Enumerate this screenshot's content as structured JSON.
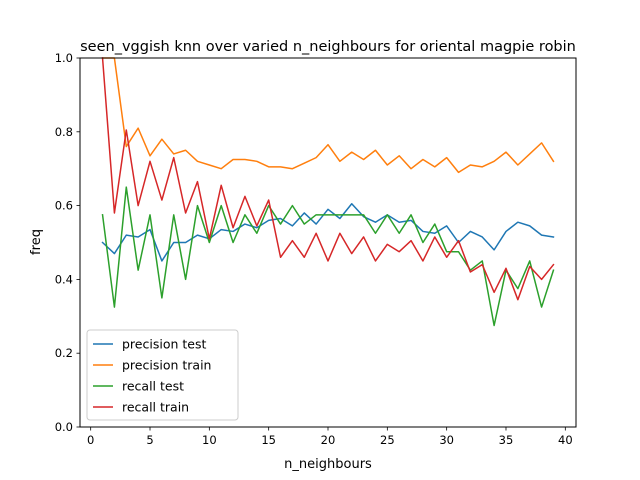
{
  "chart_data": {
    "type": "line",
    "title": "seen_vggish knn over varied n_neighbours for oriental magpie robin",
    "xlabel": "n_neighbours",
    "ylabel": "freq",
    "xlim": [
      -0.9,
      40.9
    ],
    "ylim": [
      0.0,
      1.0
    ],
    "xticks": [
      0,
      5,
      10,
      15,
      20,
      25,
      30,
      35,
      40
    ],
    "yticks": [
      0.0,
      0.2,
      0.4,
      0.6,
      0.8,
      1.0
    ],
    "xtick_labels": [
      "0",
      "5",
      "10",
      "15",
      "20",
      "25",
      "30",
      "35",
      "40"
    ],
    "ytick_labels": [
      "0.0",
      "0.2",
      "0.4",
      "0.6",
      "0.8",
      "1.0"
    ],
    "grid": false,
    "legend_position": "lower-left",
    "x": [
      1,
      2,
      3,
      4,
      5,
      6,
      7,
      8,
      9,
      10,
      11,
      12,
      13,
      14,
      15,
      16,
      17,
      18,
      19,
      20,
      21,
      22,
      23,
      24,
      25,
      26,
      27,
      28,
      29,
      30,
      31,
      32,
      33,
      34,
      35,
      36,
      37,
      38,
      39
    ],
    "series": [
      {
        "name": "precision test",
        "color": "#1f77b4",
        "values": [
          0.5,
          0.47,
          0.52,
          0.515,
          0.535,
          0.45,
          0.5,
          0.5,
          0.52,
          0.51,
          0.535,
          0.53,
          0.55,
          0.54,
          0.56,
          0.565,
          0.545,
          0.58,
          0.55,
          0.59,
          0.565,
          0.605,
          0.57,
          0.555,
          0.575,
          0.555,
          0.56,
          0.53,
          0.525,
          0.545,
          0.5,
          0.53,
          0.515,
          0.48,
          0.53,
          0.555,
          0.545,
          0.52,
          0.515
        ]
      },
      {
        "name": "precision train",
        "color": "#ff7f0e",
        "values": [
          1.0,
          1.0,
          0.76,
          0.81,
          0.735,
          0.78,
          0.74,
          0.75,
          0.72,
          0.71,
          0.7,
          0.725,
          0.725,
          0.72,
          0.705,
          0.705,
          0.7,
          0.715,
          0.73,
          0.765,
          0.72,
          0.745,
          0.725,
          0.75,
          0.71,
          0.735,
          0.7,
          0.725,
          0.705,
          0.73,
          0.69,
          0.71,
          0.705,
          0.72,
          0.745,
          0.71,
          0.74,
          0.77,
          0.72
        ]
      },
      {
        "name": "recall test",
        "color": "#2ca02c",
        "values": [
          0.575,
          0.325,
          0.65,
          0.425,
          0.575,
          0.35,
          0.575,
          0.4,
          0.6,
          0.5,
          0.6,
          0.5,
          0.575,
          0.525,
          0.6,
          0.55,
          0.6,
          0.55,
          0.575,
          0.575,
          0.575,
          0.575,
          0.575,
          0.525,
          0.575,
          0.525,
          0.575,
          0.5,
          0.55,
          0.475,
          0.475,
          0.425,
          0.45,
          0.275,
          0.425,
          0.375,
          0.45,
          0.325,
          0.425
        ]
      },
      {
        "name": "recall train",
        "color": "#d62728",
        "values": [
          1.0,
          0.58,
          0.805,
          0.6,
          0.72,
          0.615,
          0.73,
          0.58,
          0.665,
          0.51,
          0.655,
          0.54,
          0.625,
          0.545,
          0.615,
          0.46,
          0.505,
          0.46,
          0.525,
          0.45,
          0.525,
          0.47,
          0.515,
          0.45,
          0.495,
          0.475,
          0.505,
          0.45,
          0.515,
          0.46,
          0.505,
          0.42,
          0.44,
          0.365,
          0.43,
          0.345,
          0.435,
          0.4,
          0.44
        ]
      }
    ]
  }
}
